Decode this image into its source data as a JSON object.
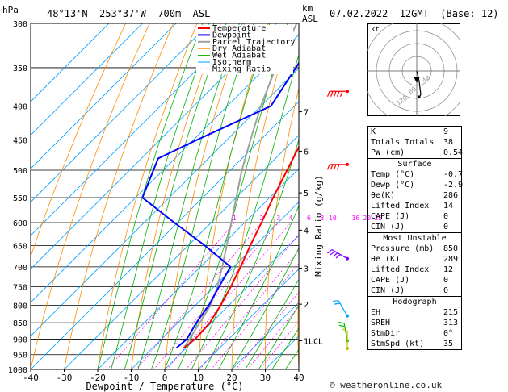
{
  "header": {
    "hpa_label": "hPa",
    "location": "48°13'N  253°37'W  700m  ASL",
    "km_label": "km",
    "asl_label": "ASL",
    "datetime": "07.02.2022  12GMT  (Base: 12)"
  },
  "chart_data": {
    "type": "skew-t log-p",
    "xlabel": "Dewpoint / Temperature (°C)",
    "ylabel_left": "hPa",
    "ylabel_right": "Mixing Ratio (g/kg)",
    "x_ticks": [
      -40,
      -30,
      -20,
      -10,
      0,
      10,
      20,
      30,
      40
    ],
    "pressure_levels": [
      300,
      350,
      400,
      450,
      500,
      550,
      600,
      650,
      700,
      750,
      800,
      850,
      900,
      950,
      1000
    ],
    "km_ticks": [
      {
        "label": "7",
        "p": 408
      },
      {
        "label": "6",
        "p": 468
      },
      {
        "label": "5",
        "p": 541
      },
      {
        "label": "4",
        "p": 616
      },
      {
        "label": "3",
        "p": 703
      },
      {
        "label": "2",
        "p": 797
      },
      {
        "label": "1LCL",
        "p": 905
      }
    ],
    "mixing_ratio_labels": [
      "1",
      "2",
      "3",
      "4",
      "6",
      "8",
      "10",
      "16",
      "20",
      "25"
    ],
    "mixing_ratio_values": [
      1,
      2,
      3,
      4,
      6,
      8,
      10,
      16,
      20,
      25
    ],
    "legend": [
      "Temperature",
      "Dewpoint",
      "Parcel Trajectory",
      "Dry Adiabat",
      "Wet Adiabat",
      "Isotherm",
      "Mixing Ratio"
    ],
    "legend_colors": [
      "#ff0000",
      "#0000ff",
      "#a0a0a0",
      "#ff8c00",
      "#00b000",
      "#00a0ff",
      "#ff00ff"
    ],
    "temperature": [
      {
        "p": 300,
        "t": -44
      },
      {
        "p": 350,
        "t": -37
      },
      {
        "p": 400,
        "t": -31
      },
      {
        "p": 450,
        "t": -27.5
      },
      {
        "p": 500,
        "t": -23
      },
      {
        "p": 550,
        "t": -19
      },
      {
        "p": 600,
        "t": -15
      },
      {
        "p": 650,
        "t": -11.5
      },
      {
        "p": 700,
        "t": -8
      },
      {
        "p": 750,
        "t": -5
      },
      {
        "p": 800,
        "t": -2.5
      },
      {
        "p": 850,
        "t": -0.5
      },
      {
        "p": 900,
        "t": 0
      },
      {
        "p": 928,
        "t": -0.7
      }
    ],
    "dewpoint": [
      {
        "p": 300,
        "t": -56
      },
      {
        "p": 350,
        "t": -51
      },
      {
        "p": 400,
        "t": -47
      },
      {
        "p": 450,
        "t": -59
      },
      {
        "p": 480,
        "t": -65
      },
      {
        "p": 550,
        "t": -58
      },
      {
        "p": 600,
        "t": -41
      },
      {
        "p": 650,
        "t": -25
      },
      {
        "p": 700,
        "t": -11
      },
      {
        "p": 750,
        "t": -8.5
      },
      {
        "p": 800,
        "t": -6
      },
      {
        "p": 850,
        "t": -4.5
      },
      {
        "p": 900,
        "t": -2.5
      },
      {
        "p": 928,
        "t": -2.9
      }
    ],
    "parcel": [
      {
        "p": 300,
        "t": -64
      },
      {
        "p": 350,
        "t": -57
      },
      {
        "p": 400,
        "t": -50
      },
      {
        "p": 450,
        "t": -43
      },
      {
        "p": 500,
        "t": -36.5
      },
      {
        "p": 550,
        "t": -30
      },
      {
        "p": 600,
        "t": -24
      },
      {
        "p": 650,
        "t": -18.5
      },
      {
        "p": 700,
        "t": -13.5
      },
      {
        "p": 750,
        "t": -9
      },
      {
        "p": 800,
        "t": -5.5
      },
      {
        "p": 850,
        "t": -3.5
      },
      {
        "p": 905,
        "t": -1.5
      },
      {
        "p": 928,
        "t": -0.7
      }
    ],
    "wind_barbs": [
      {
        "p": 380,
        "dir": 270,
        "kt": 45,
        "color": "#ff0000"
      },
      {
        "p": 490,
        "dir": 270,
        "kt": 40,
        "color": "#ff0000"
      },
      {
        "p": 680,
        "dir": 300,
        "kt": 35,
        "color": "#8000ff"
      },
      {
        "p": 830,
        "dir": 330,
        "kt": 20,
        "color": "#00a0ff"
      },
      {
        "p": 905,
        "dir": 350,
        "kt": 15,
        "color": "#00c000"
      },
      {
        "p": 930,
        "dir": 0,
        "kt": 10,
        "color": "#c0c000"
      }
    ]
  },
  "hodograph": {
    "unit": "kt",
    "ring_labels": [
      "40",
      "80",
      "120"
    ]
  },
  "indices": {
    "rows": [
      {
        "label": "K",
        "value": "9"
      },
      {
        "label": "Totals Totals",
        "value": "38"
      },
      {
        "label": "PW (cm)",
        "value": "0.54"
      }
    ]
  },
  "surface": {
    "title": "Surface",
    "rows": [
      {
        "label": "Temp (°C)",
        "value": "-0.7"
      },
      {
        "label": "Dewp (°C)",
        "value": "-2.9"
      },
      {
        "label": "θe(K)",
        "value": "286"
      },
      {
        "label": "Lifted Index",
        "value": "14"
      },
      {
        "label": "CAPE (J)",
        "value": "0"
      },
      {
        "label": "CIN (J)",
        "value": "0"
      }
    ]
  },
  "most_unstable": {
    "title": "Most Unstable",
    "rows": [
      {
        "label": "Pressure (mb)",
        "value": "850"
      },
      {
        "label": "θe (K)",
        "value": "289"
      },
      {
        "label": "Lifted Index",
        "value": "12"
      },
      {
        "label": "CAPE (J)",
        "value": "0"
      },
      {
        "label": "CIN (J)",
        "value": "0"
      }
    ]
  },
  "hodograph_table": {
    "title": "Hodograph",
    "rows": [
      {
        "label": "EH",
        "value": "215"
      },
      {
        "label": "SREH",
        "value": "313"
      },
      {
        "label": "StmDir",
        "value": "0°"
      },
      {
        "label": "StmSpd (kt)",
        "value": "35"
      }
    ]
  },
  "footer": {
    "copyright": "© weatheronline.co.uk"
  }
}
